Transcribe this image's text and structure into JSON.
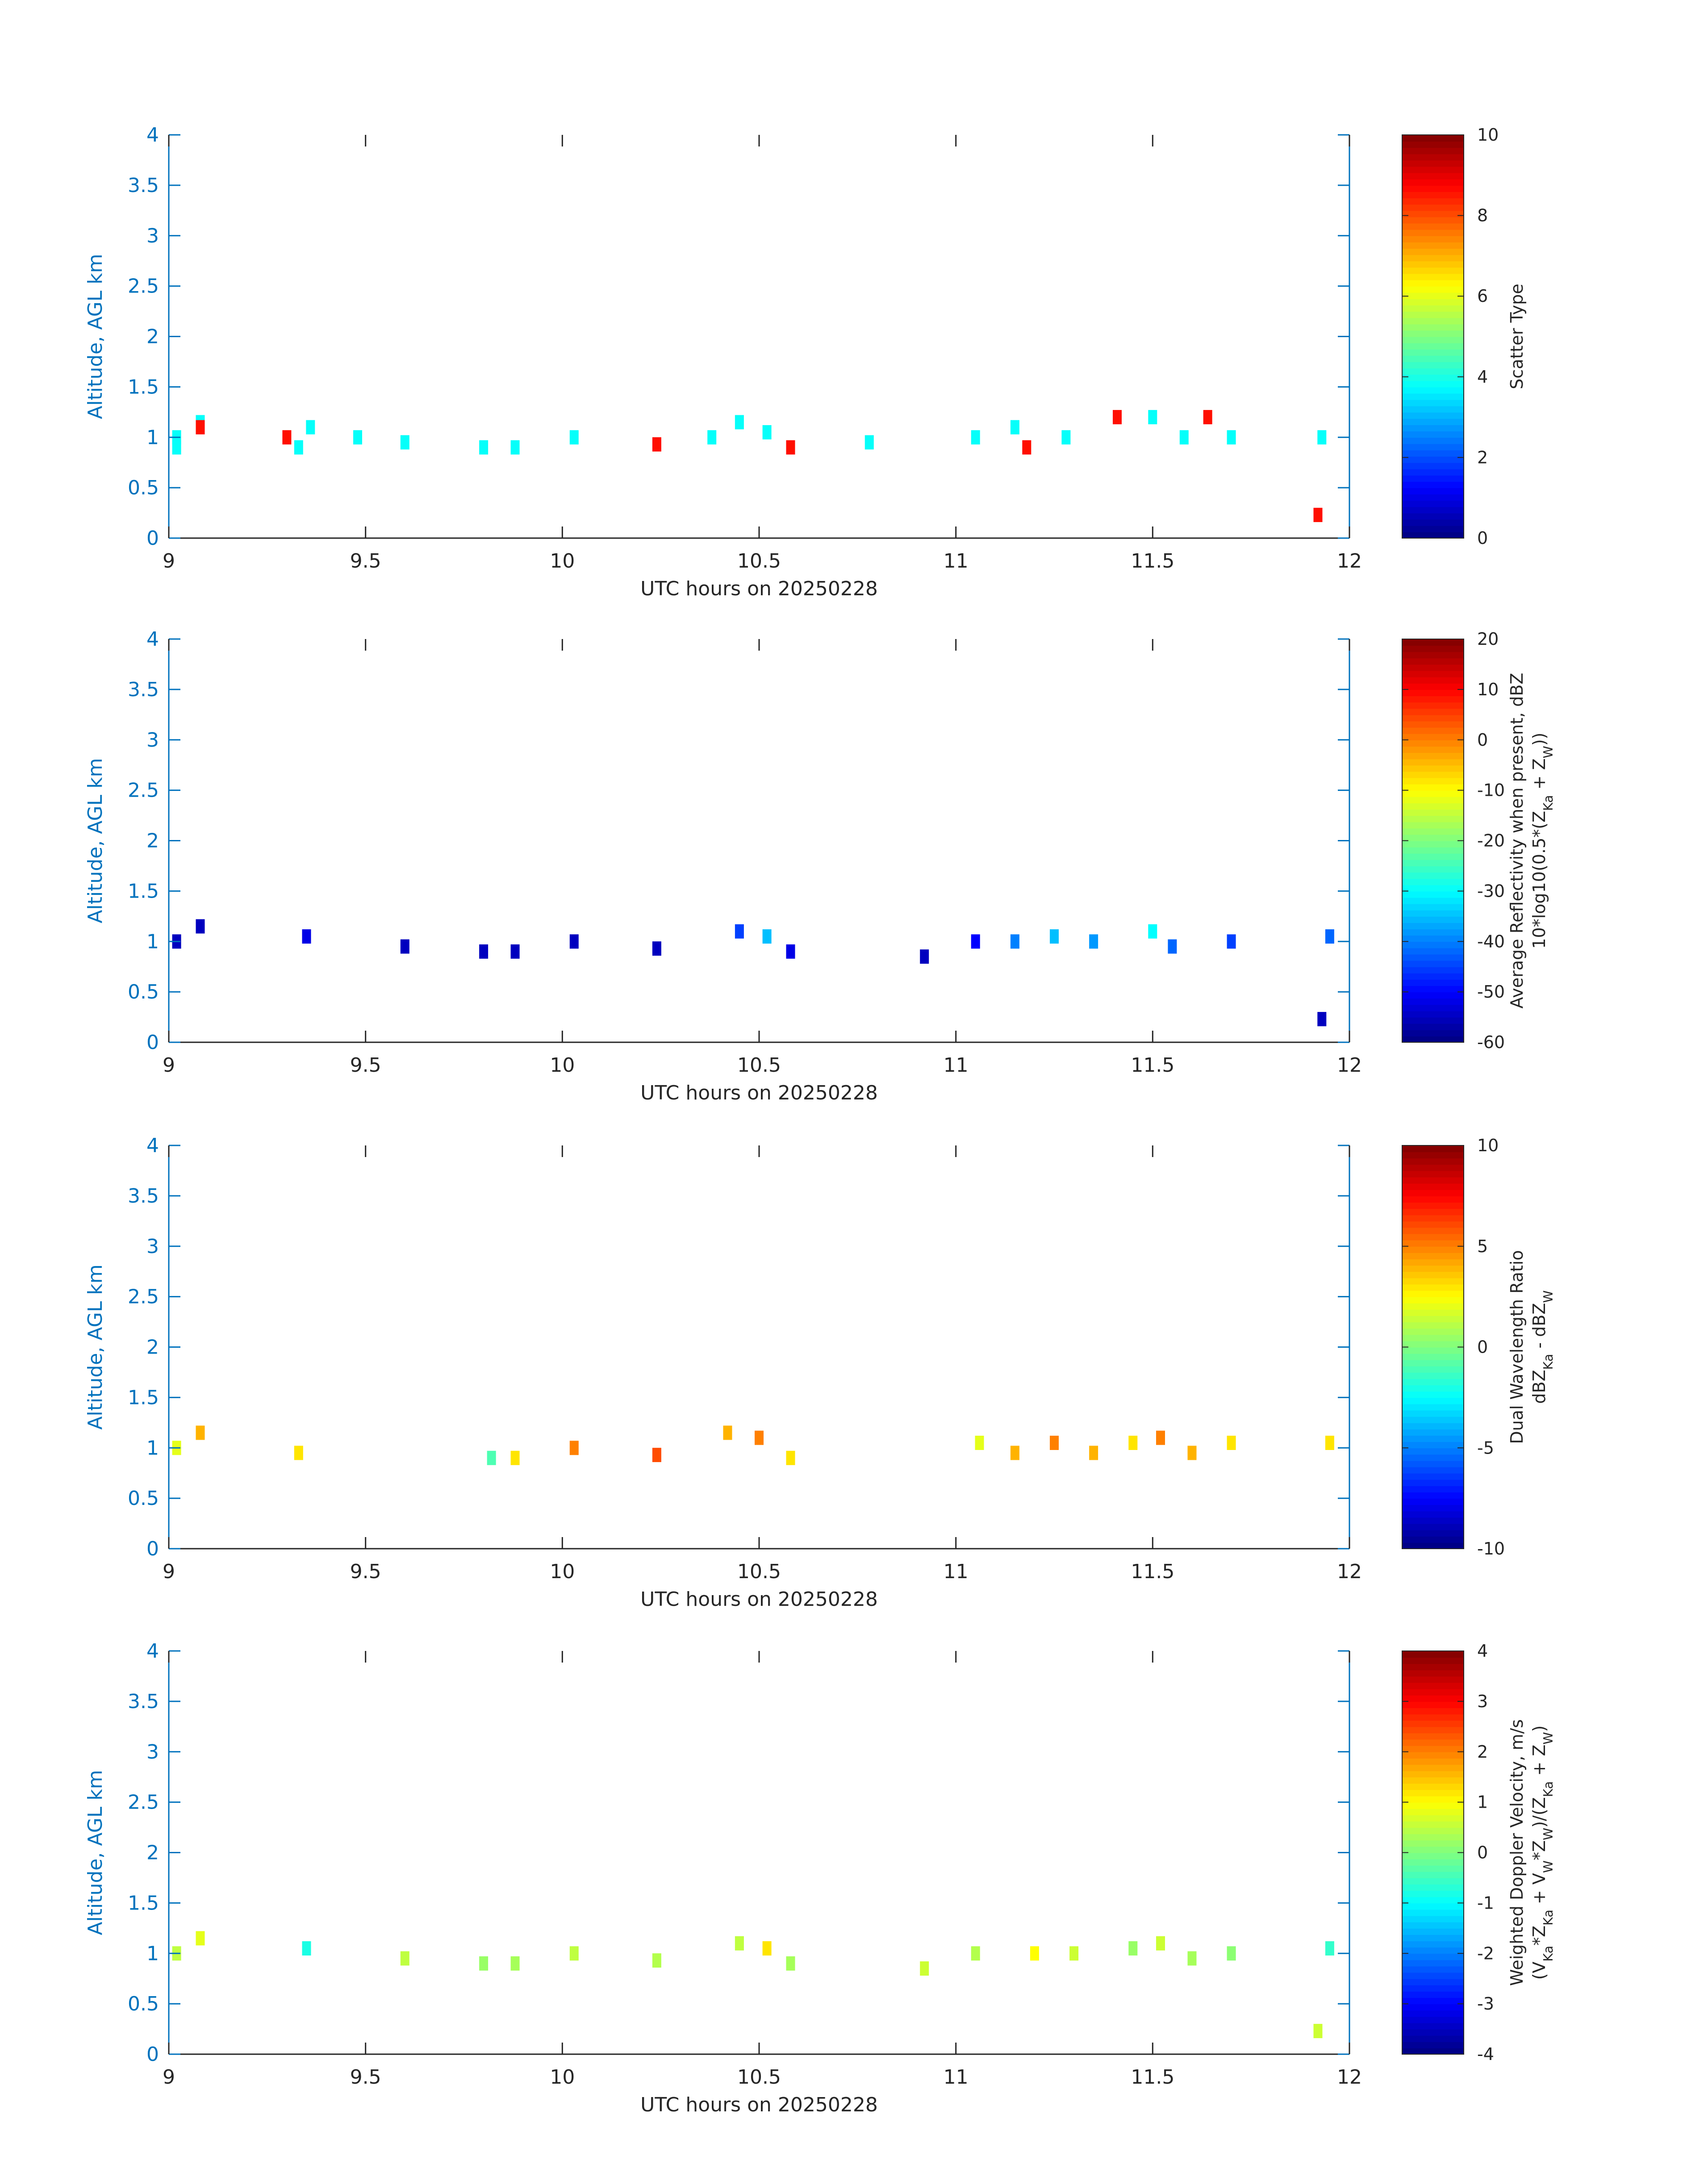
{
  "figure": {
    "x_axis_label": "UTC hours on 20250228",
    "y_axis_label": "Altitude, AGL km"
  },
  "chart_data": [
    {
      "type": "heatmap",
      "colorbar": {
        "label_lines": [
          "Scatter Type"
        ],
        "range": [
          0,
          10
        ],
        "ticks": [
          0,
          2,
          4,
          6,
          8,
          10
        ]
      },
      "xlabel": "UTC hours on 20250228",
      "ylabel": "Altitude, AGL km",
      "xlim": [
        9,
        12
      ],
      "ylim": [
        0,
        4
      ],
      "xticks": [
        9,
        9.5,
        10,
        10.5,
        11,
        11.5,
        12
      ],
      "yticks": [
        0,
        0.5,
        1,
        1.5,
        2,
        2.5,
        3,
        3.5,
        4
      ],
      "colormap": "jet",
      "grid": false,
      "cells": [
        [
          9.02,
          1.0,
          3.8
        ],
        [
          9.02,
          0.9,
          3.8
        ],
        [
          9.08,
          1.15,
          3.8
        ],
        [
          9.08,
          1.1,
          8.6
        ],
        [
          9.3,
          1.0,
          8.6
        ],
        [
          9.33,
          0.9,
          3.8
        ],
        [
          9.36,
          1.1,
          3.8
        ],
        [
          9.48,
          1.0,
          3.8
        ],
        [
          9.6,
          0.95,
          3.8
        ],
        [
          9.8,
          0.9,
          3.8
        ],
        [
          9.88,
          0.9,
          3.8
        ],
        [
          10.03,
          1.0,
          3.8
        ],
        [
          10.24,
          0.93,
          8.6
        ],
        [
          10.38,
          1.0,
          3.8
        ],
        [
          10.45,
          1.15,
          3.8
        ],
        [
          10.52,
          1.05,
          3.8
        ],
        [
          10.58,
          0.9,
          8.6
        ],
        [
          10.78,
          0.95,
          3.8
        ],
        [
          11.05,
          1.0,
          3.8
        ],
        [
          11.15,
          1.1,
          3.8
        ],
        [
          11.18,
          0.9,
          8.6
        ],
        [
          11.28,
          1.0,
          3.8
        ],
        [
          11.41,
          1.2,
          8.6
        ],
        [
          11.5,
          1.2,
          3.8
        ],
        [
          11.58,
          1.0,
          3.8
        ],
        [
          11.64,
          1.2,
          8.6
        ],
        [
          11.7,
          1.0,
          3.8
        ],
        [
          11.93,
          1.0,
          3.8
        ],
        [
          11.92,
          0.23,
          8.6
        ]
      ]
    },
    {
      "type": "heatmap",
      "colorbar": {
        "label_lines": [
          "Average Reflectivity when present, dBZ",
          "10*log10(0.5*(Z_Ka + Z_W))"
        ],
        "range": [
          -60,
          20
        ],
        "ticks": [
          -60,
          -50,
          -40,
          -30,
          -20,
          -10,
          0,
          10,
          20
        ]
      },
      "xlabel": "UTC hours on 20250228",
      "ylabel": "Altitude, AGL km",
      "xlim": [
        9,
        12
      ],
      "ylim": [
        0,
        4
      ],
      "xticks": [
        9,
        9.5,
        10,
        10.5,
        11,
        11.5,
        12
      ],
      "yticks": [
        0,
        0.5,
        1,
        1.5,
        2,
        2.5,
        3,
        3.5,
        4
      ],
      "colormap": "jet",
      "grid": false,
      "cells": [
        [
          9.02,
          1.0,
          -55
        ],
        [
          9.08,
          1.15,
          -55
        ],
        [
          9.35,
          1.05,
          -52
        ],
        [
          9.6,
          0.95,
          -55
        ],
        [
          9.8,
          0.9,
          -55
        ],
        [
          9.88,
          0.9,
          -55
        ],
        [
          10.03,
          1.0,
          -55
        ],
        [
          10.24,
          0.93,
          -55
        ],
        [
          10.45,
          1.1,
          -45
        ],
        [
          10.52,
          1.05,
          -35
        ],
        [
          10.58,
          0.9,
          -52
        ],
        [
          10.92,
          0.85,
          -55
        ],
        [
          11.05,
          1.0,
          -50
        ],
        [
          11.15,
          1.0,
          -40
        ],
        [
          11.25,
          1.05,
          -35
        ],
        [
          11.35,
          1.0,
          -38
        ],
        [
          11.5,
          1.1,
          -30
        ],
        [
          11.55,
          0.95,
          -42
        ],
        [
          11.7,
          1.0,
          -45
        ],
        [
          11.95,
          1.05,
          -42
        ],
        [
          11.93,
          0.23,
          -55
        ]
      ]
    },
    {
      "type": "heatmap",
      "colorbar": {
        "label_lines": [
          "Dual Wavelength Ratio",
          "dBZ_Ka - dBZ_W"
        ],
        "range": [
          -10,
          10
        ],
        "ticks": [
          -10,
          -5,
          0,
          5,
          10
        ]
      },
      "xlabel": "UTC hours on 20250228",
      "ylabel": "Altitude, AGL km",
      "xlim": [
        9,
        12
      ],
      "ylim": [
        0,
        4
      ],
      "xticks": [
        9,
        9.5,
        10,
        10.5,
        11,
        11.5,
        12
      ],
      "yticks": [
        0,
        0.5,
        1,
        1.5,
        2,
        2.5,
        3,
        3.5,
        4
      ],
      "colormap": "jet",
      "grid": false,
      "cells": [
        [
          9.02,
          1.0,
          2
        ],
        [
          9.08,
          1.15,
          4
        ],
        [
          9.33,
          0.95,
          3
        ],
        [
          9.82,
          0.9,
          -1
        ],
        [
          9.88,
          0.9,
          3
        ],
        [
          10.03,
          1.0,
          5
        ],
        [
          10.24,
          0.93,
          6
        ],
        [
          10.42,
          1.15,
          4
        ],
        [
          10.5,
          1.1,
          5
        ],
        [
          10.58,
          0.9,
          3
        ],
        [
          11.06,
          1.05,
          2
        ],
        [
          11.15,
          0.95,
          4
        ],
        [
          11.25,
          1.05,
          5
        ],
        [
          11.35,
          0.95,
          4
        ],
        [
          11.45,
          1.05,
          3
        ],
        [
          11.52,
          1.1,
          5
        ],
        [
          11.6,
          0.95,
          4
        ],
        [
          11.7,
          1.05,
          3
        ],
        [
          11.95,
          1.05,
          3
        ]
      ]
    },
    {
      "type": "heatmap",
      "colorbar": {
        "label_lines": [
          "Weighted Doppler Velocity, m/s",
          "(V_Ka*Z_Ka + V_W*Z_W)/(Z_Ka + Z_W)"
        ],
        "range": [
          -4,
          4
        ],
        "ticks": [
          -4,
          -3,
          -2,
          -1,
          0,
          1,
          2,
          3,
          4
        ]
      },
      "xlabel": "UTC hours on 20250228",
      "ylabel": "Altitude, AGL km",
      "xlim": [
        9,
        12
      ],
      "ylim": [
        0,
        4
      ],
      "xticks": [
        9,
        9.5,
        10,
        10.5,
        11,
        11.5,
        12
      ],
      "yticks": [
        0,
        0.5,
        1,
        1.5,
        2,
        2.5,
        3,
        3.5,
        4
      ],
      "colormap": "jet",
      "grid": false,
      "cells": [
        [
          9.02,
          1.0,
          0.5
        ],
        [
          9.08,
          1.15,
          0.8
        ],
        [
          9.35,
          1.05,
          -0.8
        ],
        [
          9.6,
          0.95,
          0.5
        ],
        [
          9.8,
          0.9,
          0.2
        ],
        [
          9.88,
          0.9,
          0.3
        ],
        [
          10.03,
          1.0,
          0.5
        ],
        [
          10.24,
          0.93,
          0.4
        ],
        [
          10.45,
          1.1,
          0.5
        ],
        [
          10.52,
          1.05,
          1.2
        ],
        [
          10.58,
          0.9,
          0.3
        ],
        [
          10.92,
          0.85,
          0.6
        ],
        [
          11.05,
          1.0,
          0.4
        ],
        [
          11.2,
          1.0,
          1.0
        ],
        [
          11.3,
          1.0,
          0.6
        ],
        [
          11.45,
          1.05,
          0.2
        ],
        [
          11.52,
          1.1,
          0.6
        ],
        [
          11.6,
          0.95,
          0.3
        ],
        [
          11.7,
          1.0,
          0.1
        ],
        [
          11.95,
          1.05,
          -0.6
        ],
        [
          11.92,
          0.23,
          0.6
        ]
      ]
    }
  ]
}
